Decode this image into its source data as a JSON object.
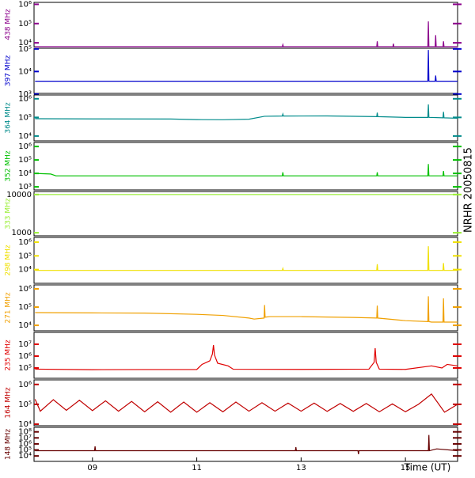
{
  "figure": {
    "label": "NRHR 20050815"
  },
  "chart_data": [
    {
      "type": "line",
      "ylabel": "438 MHz",
      "color": "#8b008b",
      "log_y": true,
      "xlim": [
        7.88,
        16.0
      ],
      "ylim": [
        6300,
        1260000
      ],
      "yticks": [
        {
          "value": 10000,
          "label": "10⁴"
        },
        {
          "value": 100000,
          "label": "10⁵"
        },
        {
          "value": 1000000,
          "label": "10⁶"
        }
      ],
      "x": [
        7.9,
        12.64,
        12.65,
        12.66,
        14.45,
        14.46,
        14.47,
        14.76,
        14.77,
        14.78,
        15.43,
        15.44,
        15.45,
        15.57,
        15.58,
        15.59,
        15.72,
        15.73,
        15.74,
        16.0
      ],
      "values": [
        6300,
        6300,
        8000,
        6300,
        6300,
        12000,
        6300,
        6300,
        9000,
        6300,
        6300,
        130000,
        6300,
        6300,
        25000,
        6300,
        6300,
        12000,
        6300,
        6300
      ]
    },
    {
      "type": "line",
      "ylabel": "397 MHz",
      "color": "#0000cc",
      "log_y": true,
      "xlim": [
        7.88,
        16.0
      ],
      "ylim": [
        1070,
        107000
      ],
      "yticks": [
        {
          "value": 1000,
          "label": "10³"
        },
        {
          "value": 10000,
          "label": "10⁴"
        },
        {
          "value": 100000,
          "label": "10⁵"
        }
      ],
      "x": [
        7.9,
        15.43,
        15.44,
        15.45,
        15.57,
        15.58,
        15.59,
        16.0
      ],
      "values": [
        3700,
        3700,
        90000,
        3700,
        3700,
        6600,
        3700,
        3700
      ]
    },
    {
      "type": "line",
      "ylabel": "364 MHz",
      "color": "#008b8b",
      "log_y": true,
      "xlim": [
        7.88,
        16.0
      ],
      "ylim": [
        5500,
        1600000
      ],
      "yticks": [
        {
          "value": 10000,
          "label": "10⁴"
        },
        {
          "value": 100000,
          "label": "10⁵"
        },
        {
          "value": 1000000,
          "label": "10⁶"
        }
      ],
      "x": [
        7.9,
        9.0,
        10.5,
        11.0,
        11.5,
        12.0,
        12.3,
        12.64,
        12.65,
        12.66,
        13.5,
        14.45,
        14.46,
        14.47,
        15.0,
        15.43,
        15.44,
        15.45,
        15.72,
        15.73,
        15.74,
        16.0
      ],
      "values": [
        85000,
        83000,
        82000,
        76000,
        75000,
        80000,
        115000,
        118000,
        150000,
        118000,
        120000,
        110000,
        180000,
        110000,
        100000,
        100000,
        500000,
        100000,
        95000,
        200000,
        95000,
        90000
      ]
    },
    {
      "type": "line",
      "ylabel": "352 MHz",
      "color": "#00c000",
      "log_y": true,
      "xlim": [
        7.88,
        16.0
      ],
      "ylim": [
        590,
        2000000
      ],
      "yticks": [
        {
          "value": 1000,
          "label": "10³"
        },
        {
          "value": 10000,
          "label": "10⁴"
        },
        {
          "value": 100000,
          "label": "10⁵"
        },
        {
          "value": 1000000,
          "label": "10⁶"
        }
      ],
      "x": [
        7.9,
        8.2,
        8.3,
        12.64,
        12.65,
        12.66,
        14.45,
        14.46,
        14.47,
        15.43,
        15.44,
        15.45,
        15.72,
        15.73,
        15.74,
        16.0
      ],
      "values": [
        10000,
        9000,
        6600,
        6600,
        12000,
        6600,
        6600,
        12000,
        6600,
        6600,
        50000,
        6600,
        6600,
        15000,
        6600,
        6600
      ]
    },
    {
      "type": "line",
      "ylabel": "333 MHz",
      "color": "#99ee33",
      "log_y": true,
      "xlim": [
        7.88,
        16.0
      ],
      "ylim": [
        830,
        12000
      ],
      "yticks": [
        1000,
        10000
      ],
      "x": [
        7.9,
        16.0
      ],
      "values": [
        10000,
        10000
      ]
    },
    {
      "type": "line",
      "ylabel": "298 MHz",
      "color": "#f0e000",
      "log_y": true,
      "xlim": [
        7.88,
        16.0
      ],
      "ylim": [
        1000,
        2200000
      ],
      "yticks": [
        {
          "value": 10000,
          "label": "10⁴"
        },
        {
          "value": 100000,
          "label": "10⁵"
        },
        {
          "value": 1000000,
          "label": "10⁶"
        }
      ],
      "x": [
        7.9,
        12.64,
        12.65,
        12.66,
        14.45,
        14.46,
        14.47,
        15.43,
        15.44,
        15.45,
        15.72,
        15.73,
        15.74,
        16.0
      ],
      "values": [
        8700,
        8700,
        12000,
        8700,
        8700,
        25000,
        8700,
        8700,
        500000,
        8700,
        8700,
        30000,
        8700,
        8700
      ]
    },
    {
      "type": "line",
      "ylabel": "271 MHz",
      "color": "#f0a000",
      "log_y": true,
      "xlim": [
        7.88,
        16.0
      ],
      "ylim": [
        5000,
        1650000
      ],
      "yticks": [
        {
          "value": 10000,
          "label": "10⁴"
        },
        {
          "value": 100000,
          "label": "10⁵"
        },
        {
          "value": 1000000,
          "label": "10⁶"
        }
      ],
      "x": [
        7.9,
        9.0,
        10.0,
        11.0,
        11.5,
        12.0,
        12.1,
        12.29,
        12.3,
        12.31,
        12.4,
        13.0,
        14.0,
        14.45,
        14.46,
        14.47,
        15.0,
        15.43,
        15.44,
        15.45,
        15.5,
        15.72,
        15.73,
        15.74,
        16.0
      ],
      "values": [
        50000,
        48000,
        47000,
        40000,
        35000,
        25000,
        22000,
        25000,
        130000,
        28000,
        30000,
        30000,
        27000,
        25000,
        120000,
        25000,
        18000,
        16000,
        390000,
        16000,
        15000,
        15000,
        300000,
        15000,
        15000
      ]
    },
    {
      "type": "line",
      "ylabel": "235 MHz",
      "color": "#e00000",
      "log_y": true,
      "xlim": [
        7.88,
        16.0
      ],
      "ylim": [
        13500,
        100000000
      ],
      "yticks": [
        {
          "value": 100000,
          "label": "10⁵"
        },
        {
          "value": 1000000,
          "label": "10⁶"
        },
        {
          "value": 10000000,
          "label": "10⁷"
        }
      ],
      "x": [
        7.9,
        9.0,
        10.0,
        11.0,
        11.1,
        11.25,
        11.3,
        11.32,
        11.34,
        11.4,
        11.6,
        11.7,
        13.0,
        14.3,
        14.4,
        14.42,
        14.44,
        14.5,
        15.0,
        15.5,
        15.7,
        15.8,
        16.0
      ],
      "values": [
        80000,
        72000,
        74000,
        75000,
        200000,
        400000,
        1500000,
        8500000,
        1200000,
        250000,
        150000,
        78000,
        76000,
        80000,
        300000,
        4700000,
        300000,
        80000,
        76000,
        150000,
        100000,
        200000,
        150000
      ]
    },
    {
      "type": "line",
      "ylabel": "164 MHz",
      "color": "#c00000",
      "log_y": true,
      "xlim": [
        7.88,
        16.0
      ],
      "ylim": [
        8300,
        1700000
      ],
      "yticks": [
        {
          "value": 10000,
          "label": "10⁴"
        },
        {
          "value": 100000,
          "label": "10⁵"
        },
        {
          "value": 1000000,
          "label": "10⁶"
        }
      ],
      "x": [
        7.9,
        8.0,
        8.25,
        8.5,
        8.75,
        9.0,
        9.25,
        9.5,
        9.75,
        10.0,
        10.25,
        10.5,
        10.75,
        11.0,
        11.25,
        11.5,
        11.75,
        12.0,
        12.25,
        12.5,
        12.75,
        13.0,
        13.25,
        13.5,
        13.75,
        14.0,
        14.25,
        14.5,
        14.75,
        15.0,
        15.25,
        15.5,
        15.75,
        16.0
      ],
      "values": [
        180000,
        45000,
        170000,
        50000,
        160000,
        48000,
        150000,
        45000,
        140000,
        42000,
        135000,
        40000,
        130000,
        40000,
        120000,
        42000,
        130000,
        45000,
        120000,
        45000,
        115000,
        45000,
        115000,
        44000,
        110000,
        44000,
        110000,
        42000,
        105000,
        42000,
        100000,
        330000,
        40000,
        100000
      ]
    },
    {
      "type": "line",
      "ylabel": "148 MHz",
      "color": "#660000",
      "log_y": true,
      "xlim": [
        7.88,
        16.0
      ],
      "ylim": [
        1260,
        560000000
      ],
      "yticks": [
        {
          "value": 10000,
          "label": "10⁴"
        },
        {
          "value": 100000,
          "label": "10⁵"
        },
        {
          "value": 1000000,
          "label": "10⁶"
        },
        {
          "value": 10000000,
          "label": "10⁷"
        },
        {
          "value": 100000000,
          "label": "10⁸"
        }
      ],
      "x": [
        7.9,
        9.04,
        9.05,
        9.06,
        12.89,
        12.9,
        12.91,
        14.09,
        14.1,
        14.11,
        15.44,
        15.45,
        15.46,
        15.6,
        16.0
      ],
      "values": [
        74000,
        74000,
        400000,
        74000,
        74000,
        300000,
        74000,
        74000,
        20000,
        74000,
        74000,
        30000000,
        74000,
        150000,
        74000
      ],
      "xticks": [
        {
          "value": 9,
          "label": "09"
        },
        11,
        13,
        15
      ],
      "xlabel": "Time (UT)"
    }
  ]
}
